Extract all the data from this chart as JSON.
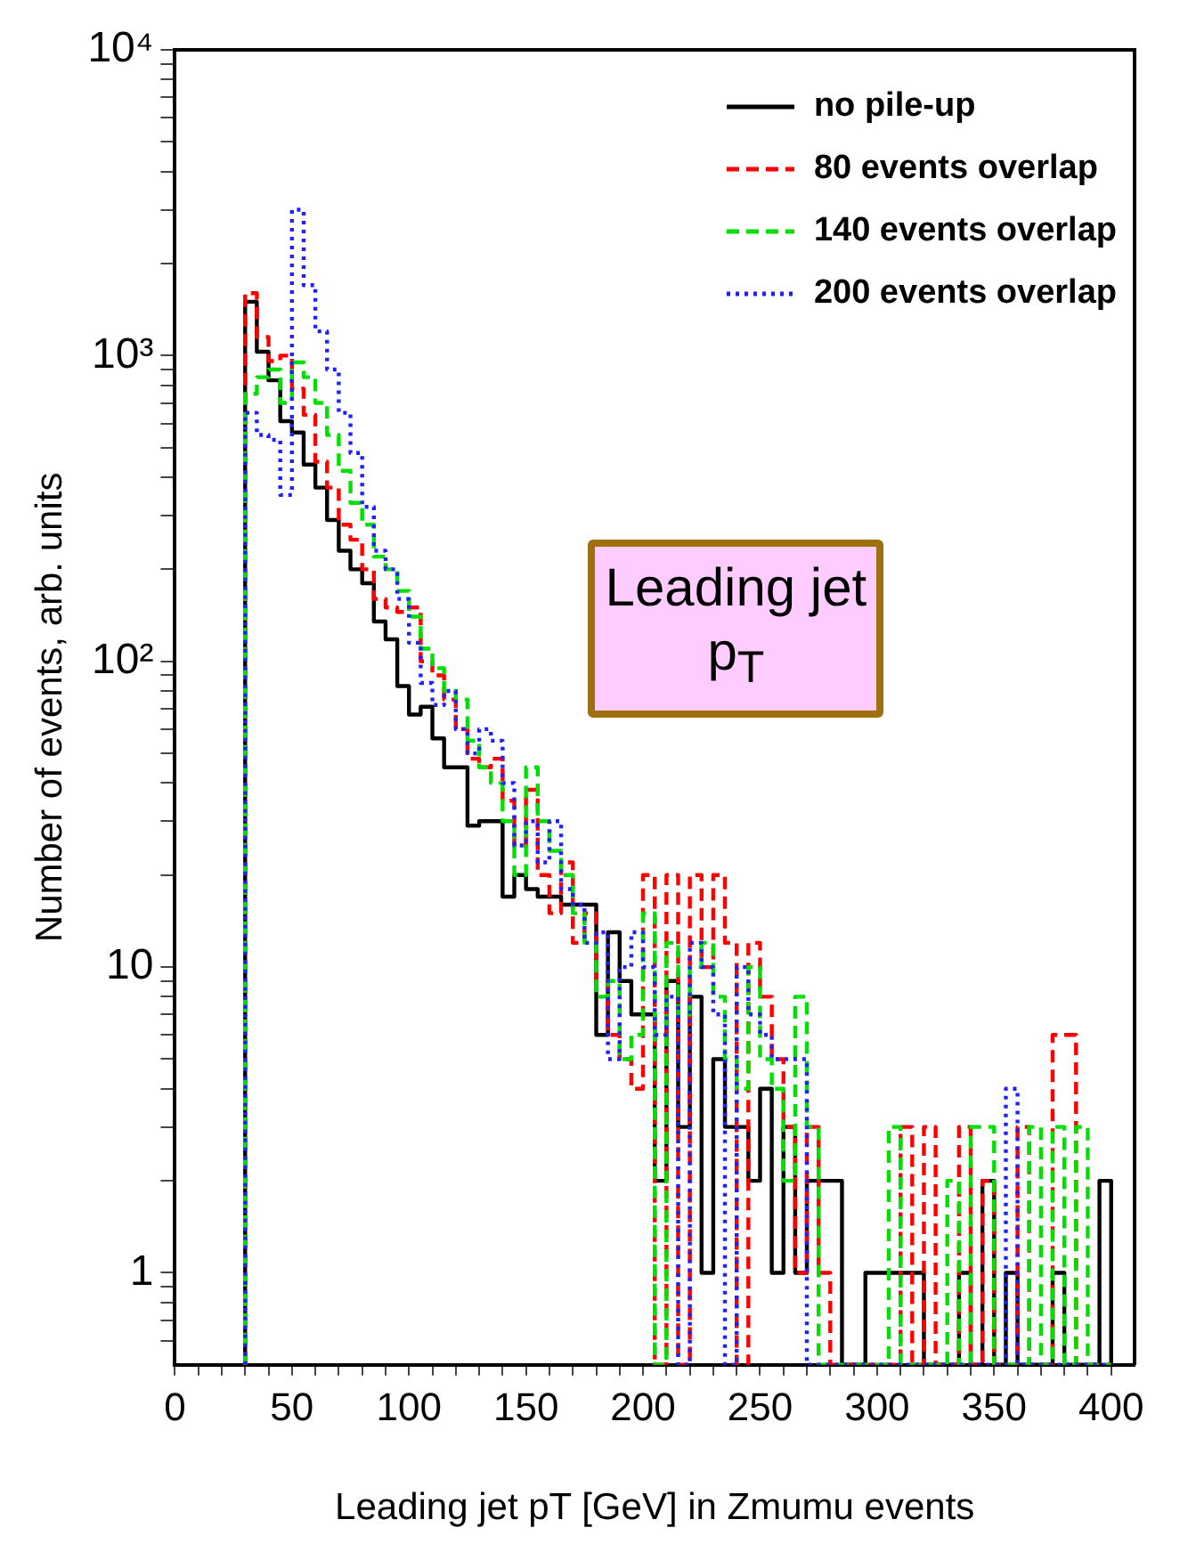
{
  "chart_data": {
    "type": "histogram",
    "xlabel": "Leading jet pT [GeV] in Zmumu events",
    "ylabel": "Number of events, arb. units",
    "annotations": [
      "Leading jet p$_{T}$"
    ],
    "bins": [
      30,
      35,
      40,
      45,
      50,
      55,
      60,
      65,
      70,
      75,
      80,
      85,
      90,
      95,
      100,
      105,
      110,
      115,
      120,
      125,
      130,
      135,
      140,
      145,
      150,
      155,
      160,
      165,
      170,
      175,
      180,
      185,
      190,
      195,
      200,
      205,
      210,
      215,
      220,
      225,
      230,
      235,
      240,
      245,
      250,
      255,
      260,
      265,
      270,
      275,
      280,
      285,
      290,
      295,
      300,
      305,
      310,
      315,
      320,
      325,
      330,
      335,
      340,
      345,
      350,
      355,
      360,
      365,
      370,
      375,
      380,
      385,
      390,
      395,
      400
    ],
    "series": [
      {
        "name": "no pile-up",
        "color": "#000000",
        "line_style": "solid",
        "values": [
          1500,
          1030,
          830,
          610,
          560,
          440,
          370,
          290,
          230,
          200,
          180,
          135,
          118,
          83,
          67,
          71,
          56,
          45,
          45,
          29,
          30,
          30,
          17,
          20,
          18,
          17,
          17,
          16,
          16,
          16,
          6,
          13,
          9,
          7,
          7,
          2,
          9,
          3,
          8,
          1,
          5,
          3,
          3,
          2,
          4,
          1,
          3,
          1,
          2,
          2,
          2,
          null,
          null,
          1,
          1,
          1,
          1,
          1,
          null,
          null,
          null,
          1,
          null,
          2,
          null,
          1,
          null,
          null,
          null,
          1,
          null,
          null,
          null,
          2
        ]
      },
      {
        "name": "80 events overlap",
        "color": "#ff0000",
        "line_style": "dashed",
        "values": [
          1600,
          1150,
          960,
          1000,
          780,
          640,
          450,
          370,
          280,
          250,
          200,
          160,
          150,
          145,
          150,
          100,
          90,
          75,
          60,
          48,
          45,
          48,
          35,
          25,
          38,
          20,
          15,
          22,
          12,
          15,
          9,
          6,
          5,
          4,
          20,
          null,
          20,
          null,
          20,
          10,
          20,
          12,
          null,
          12,
          8,
          5,
          3,
          1,
          3,
          1,
          null,
          null,
          null,
          null,
          null,
          null,
          3,
          null,
          3,
          null,
          null,
          3,
          null,
          2,
          null,
          null,
          3,
          null,
          null,
          6,
          6,
          null,
          null,
          null
        ]
      },
      {
        "name": "140 events overlap",
        "color": "#00e000",
        "line_style": "dashed",
        "values": [
          750,
          850,
          900,
          700,
          950,
          850,
          700,
          550,
          420,
          330,
          280,
          220,
          200,
          170,
          140,
          110,
          95,
          80,
          75,
          55,
          45,
          40,
          30,
          20,
          45,
          30,
          24,
          20,
          15,
          12,
          8,
          9,
          5,
          6,
          15,
          null,
          12,
          7,
          10,
          12,
          8,
          5,
          4,
          10,
          5,
          4,
          2,
          8,
          3,
          null,
          null,
          null,
          null,
          null,
          null,
          3,
          null,
          null,
          null,
          null,
          2,
          null,
          3,
          3,
          null,
          null,
          null,
          3,
          null,
          3,
          null,
          3,
          null,
          null
        ]
      },
      {
        "name": "200 events overlap",
        "color": "#2020ff",
        "line_style": "dotted",
        "values": [
          650,
          550,
          530,
          350,
          3000,
          1700,
          1200,
          900,
          650,
          480,
          320,
          230,
          200,
          160,
          115,
          85,
          72,
          80,
          60,
          50,
          60,
          55,
          40,
          25,
          30,
          22,
          30,
          18,
          16,
          12,
          13,
          5,
          10,
          13,
          10,
          6,
          8,
          null,
          12,
          10,
          7,
          null,
          10,
          7,
          6,
          5,
          5,
          5,
          null,
          null,
          null,
          null,
          null,
          null,
          null,
          null,
          null,
          null,
          null,
          null,
          null,
          null,
          null,
          null,
          null,
          4,
          null,
          null,
          null,
          null,
          null,
          null,
          null,
          null
        ]
      }
    ],
    "xlim": [
      0,
      410
    ],
    "xticks": [
      0,
      {
        "value": 10,
        "label": null
      },
      {
        "value": 20,
        "label": null
      },
      {
        "value": 30,
        "label": null
      },
      {
        "value": 40,
        "label": null
      },
      50,
      {
        "value": 60,
        "label": null
      },
      {
        "value": 70,
        "label": null
      },
      {
        "value": 80,
        "label": null
      },
      {
        "value": 90,
        "label": null
      },
      100,
      {
        "value": 110,
        "label": null
      },
      {
        "value": 120,
        "label": null
      },
      {
        "value": 130,
        "label": null
      },
      {
        "value": 140,
        "label": null
      },
      150,
      {
        "value": 160,
        "label": null
      },
      {
        "value": 170,
        "label": null
      },
      {
        "value": 180,
        "label": null
      },
      {
        "value": 190,
        "label": null
      },
      200,
      {
        "value": 210,
        "label": null
      },
      {
        "value": 220,
        "label": null
      },
      {
        "value": 230,
        "label": null
      },
      {
        "value": 240,
        "label": null
      },
      250,
      {
        "value": 260,
        "label": null
      },
      {
        "value": 270,
        "label": null
      },
      {
        "value": 280,
        "label": null
      },
      {
        "value": 290,
        "label": null
      },
      300,
      {
        "value": 310,
        "label": null
      },
      {
        "value": 320,
        "label": null
      },
      {
        "value": 330,
        "label": null
      },
      {
        "value": 340,
        "label": null
      },
      350,
      {
        "value": 360,
        "label": null
      },
      {
        "value": 370,
        "label": null
      },
      {
        "value": 380,
        "label": null
      },
      {
        "value": 390,
        "label": null
      },
      400
    ],
    "ylim": [
      0.5,
      10000
    ],
    "yticks": [
      {
        "value": 0.6,
        "label": null
      },
      {
        "value": 0.7,
        "label": null
      },
      {
        "value": 0.8,
        "label": null
      },
      {
        "value": 0.9,
        "label": null
      },
      1,
      {
        "value": 2,
        "label": null
      },
      {
        "value": 3,
        "label": null
      },
      {
        "value": 4,
        "label": null
      },
      {
        "value": 5,
        "label": null
      },
      {
        "value": 6,
        "label": null
      },
      {
        "value": 7,
        "label": null
      },
      {
        "value": 8,
        "label": null
      },
      {
        "value": 9,
        "label": null
      },
      10,
      {
        "value": 20,
        "label": null
      },
      {
        "value": 30,
        "label": null
      },
      {
        "value": 40,
        "label": null
      },
      {
        "value": 50,
        "label": null
      },
      {
        "value": 60,
        "label": null
      },
      {
        "value": 70,
        "label": null
      },
      {
        "value": 80,
        "label": null
      },
      {
        "value": 90,
        "label": null
      },
      {
        "value": 100,
        "label": "10²"
      },
      {
        "value": 200,
        "label": null
      },
      {
        "value": 300,
        "label": null
      },
      {
        "value": 400,
        "label": null
      },
      {
        "value": 500,
        "label": null
      },
      {
        "value": 600,
        "label": null
      },
      {
        "value": 700,
        "label": null
      },
      {
        "value": 800,
        "label": null
      },
      {
        "value": 900,
        "label": null
      },
      {
        "value": 1000,
        "label": "10³"
      },
      {
        "value": 2000,
        "label": null
      },
      {
        "value": 3000,
        "label": null
      },
      {
        "value": 4000,
        "label": null
      },
      {
        "value": 5000,
        "label": null
      },
      {
        "value": 6000,
        "label": null
      },
      {
        "value": 7000,
        "label": null
      },
      {
        "value": 8000,
        "label": null
      },
      {
        "value": 9000,
        "label": null
      },
      {
        "value": 10000,
        "label": "10⁴"
      }
    ],
    "log": "y",
    "grid": false,
    "legend": "top right"
  }
}
